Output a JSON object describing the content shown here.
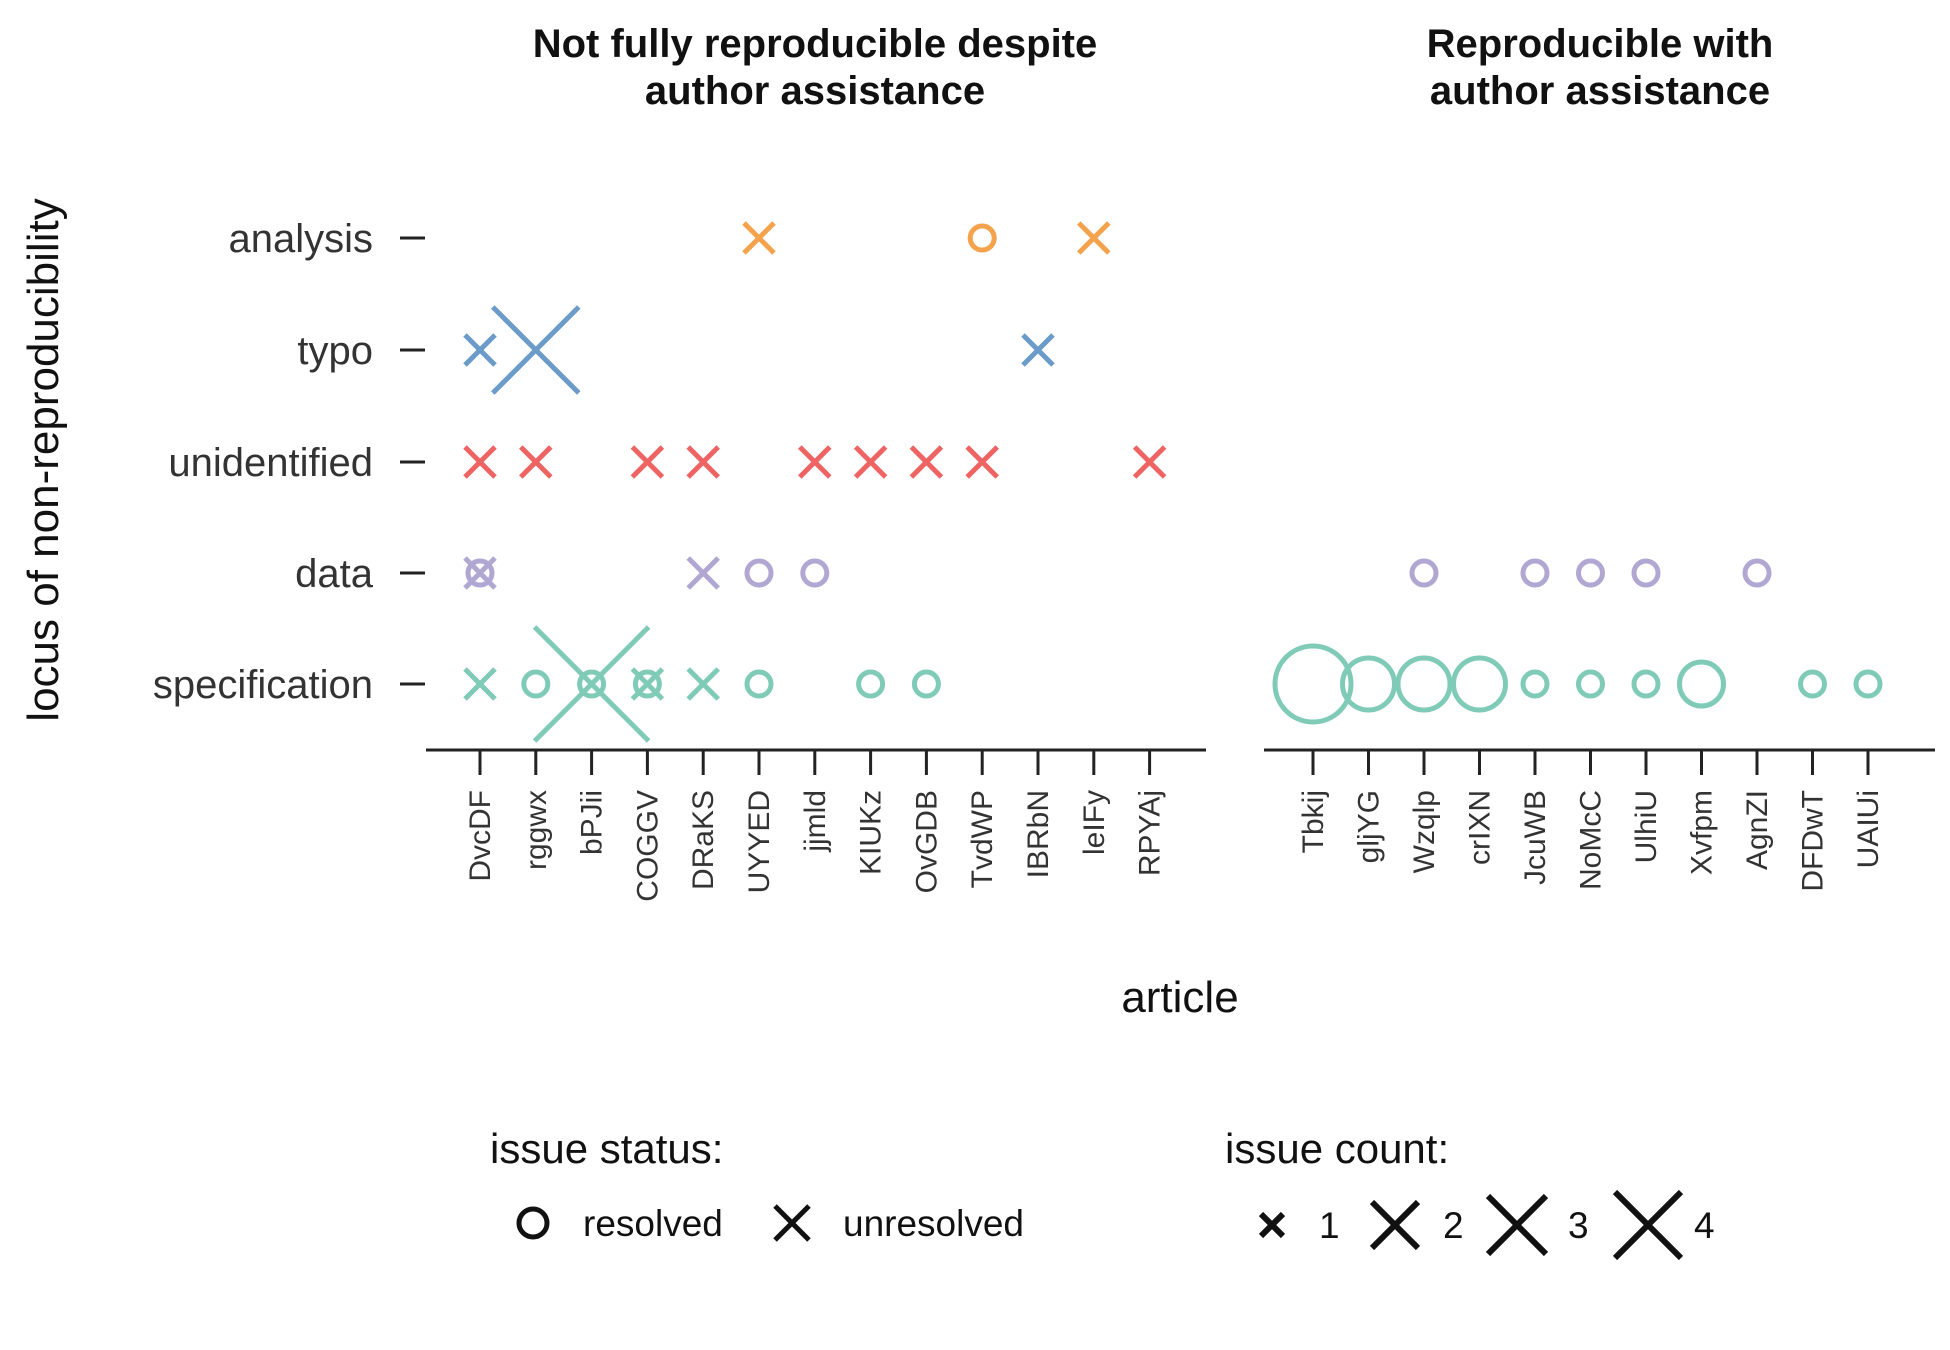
{
  "chart_data": {
    "type": "scatter",
    "ylabel": "locus of non-reproducibility",
    "xlabel": "article",
    "categories_y": [
      "analysis",
      "typo",
      "unidentified",
      "data",
      "specification"
    ],
    "colors": {
      "analysis": "#F5A24C",
      "typo": "#6B9BC8",
      "unidentified": "#EE6463",
      "data": "#B0A8D2",
      "specification": "#7FCBB8"
    },
    "panels": [
      {
        "title_lines": [
          "Not fully reproducible despite",
          "author assistance"
        ],
        "articles": [
          "DvcDF",
          "rggwx",
          "bPJii",
          "COGGV",
          "DRaKS",
          "UYYED",
          "jjmld",
          "KIUKz",
          "OvGDB",
          "TvdWP",
          "IBRbN",
          "leIFy",
          "RPYAj"
        ],
        "points": [
          {
            "article": "UYYED",
            "locus": "analysis",
            "status": "unresolved",
            "count": 1
          },
          {
            "article": "TvdWP",
            "locus": "analysis",
            "status": "resolved",
            "count": 1
          },
          {
            "article": "leIFy",
            "locus": "analysis",
            "status": "unresolved",
            "count": 1
          },
          {
            "article": "DvcDF",
            "locus": "typo",
            "status": "unresolved",
            "count": 1
          },
          {
            "article": "rggwx",
            "locus": "typo",
            "status": "unresolved",
            "count": 3
          },
          {
            "article": "IBRbN",
            "locus": "typo",
            "status": "unresolved",
            "count": 1
          },
          {
            "article": "DvcDF",
            "locus": "unidentified",
            "status": "unresolved",
            "count": 1
          },
          {
            "article": "rggwx",
            "locus": "unidentified",
            "status": "unresolved",
            "count": 1
          },
          {
            "article": "COGGV",
            "locus": "unidentified",
            "status": "unresolved",
            "count": 1
          },
          {
            "article": "DRaKS",
            "locus": "unidentified",
            "status": "unresolved",
            "count": 1
          },
          {
            "article": "jjmld",
            "locus": "unidentified",
            "status": "unresolved",
            "count": 1
          },
          {
            "article": "KIUKz",
            "locus": "unidentified",
            "status": "unresolved",
            "count": 1
          },
          {
            "article": "OvGDB",
            "locus": "unidentified",
            "status": "unresolved",
            "count": 1
          },
          {
            "article": "TvdWP",
            "locus": "unidentified",
            "status": "unresolved",
            "count": 1
          },
          {
            "article": "RPYAj",
            "locus": "unidentified",
            "status": "unresolved",
            "count": 1
          },
          {
            "article": "DvcDF",
            "locus": "data",
            "status": "resolved",
            "count": 1
          },
          {
            "article": "DvcDF",
            "locus": "data",
            "status": "unresolved",
            "count": 1
          },
          {
            "article": "DRaKS",
            "locus": "data",
            "status": "unresolved",
            "count": 1
          },
          {
            "article": "UYYED",
            "locus": "data",
            "status": "resolved",
            "count": 1
          },
          {
            "article": "jjmld",
            "locus": "data",
            "status": "resolved",
            "count": 1
          },
          {
            "article": "DvcDF",
            "locus": "specification",
            "status": "unresolved",
            "count": 1
          },
          {
            "article": "rggwx",
            "locus": "specification",
            "status": "resolved",
            "count": 1
          },
          {
            "article": "bPJii",
            "locus": "specification",
            "status": "resolved",
            "count": 1
          },
          {
            "article": "bPJii",
            "locus": "specification",
            "status": "unresolved",
            "count": 4
          },
          {
            "article": "COGGV",
            "locus": "specification",
            "status": "resolved",
            "count": 1
          },
          {
            "article": "COGGV",
            "locus": "specification",
            "status": "unresolved",
            "count": 1
          },
          {
            "article": "DRaKS",
            "locus": "specification",
            "status": "unresolved",
            "count": 1
          },
          {
            "article": "UYYED",
            "locus": "specification",
            "status": "resolved",
            "count": 1
          },
          {
            "article": "KIUKz",
            "locus": "specification",
            "status": "resolved",
            "count": 1
          },
          {
            "article": "OvGDB",
            "locus": "specification",
            "status": "resolved",
            "count": 1
          }
        ]
      },
      {
        "title_lines": [
          "Reproducible with",
          "author assistance"
        ],
        "articles": [
          "Tbkij",
          "gljYG",
          "Wzqlp",
          "crIXN",
          "JcuWB",
          "NoMcC",
          "UlhiU",
          "Xvfpm",
          "AgnZI",
          "DFDwT",
          "UAIUi"
        ],
        "points": [
          {
            "article": "Wzqlp",
            "locus": "data",
            "status": "resolved",
            "count": 1
          },
          {
            "article": "JcuWB",
            "locus": "data",
            "status": "resolved",
            "count": 1
          },
          {
            "article": "NoMcC",
            "locus": "data",
            "status": "resolved",
            "count": 1
          },
          {
            "article": "UlhiU",
            "locus": "data",
            "status": "resolved",
            "count": 1
          },
          {
            "article": "AgnZI",
            "locus": "data",
            "status": "resolved",
            "count": 1
          },
          {
            "article": "Tbkij",
            "locus": "specification",
            "status": "resolved",
            "count": 4
          },
          {
            "article": "gljYG",
            "locus": "specification",
            "status": "resolved",
            "count": 3
          },
          {
            "article": "Wzqlp",
            "locus": "specification",
            "status": "resolved",
            "count": 3
          },
          {
            "article": "crIXN",
            "locus": "specification",
            "status": "resolved",
            "count": 3
          },
          {
            "article": "JcuWB",
            "locus": "specification",
            "status": "resolved",
            "count": 1
          },
          {
            "article": "NoMcC",
            "locus": "specification",
            "status": "resolved",
            "count": 1
          },
          {
            "article": "UlhiU",
            "locus": "specification",
            "status": "resolved",
            "count": 1
          },
          {
            "article": "Xvfpm",
            "locus": "specification",
            "status": "resolved",
            "count": 2
          },
          {
            "article": "DFDwT",
            "locus": "specification",
            "status": "resolved",
            "count": 1
          },
          {
            "article": "UAIUi",
            "locus": "specification",
            "status": "resolved",
            "count": 1
          }
        ]
      }
    ],
    "legend": {
      "status_title": "issue status:",
      "status_items": [
        {
          "label": "resolved",
          "marker": "circle"
        },
        {
          "label": "unresolved",
          "marker": "cross"
        }
      ],
      "count_title": "issue count:",
      "count_items": [
        {
          "label": "1",
          "count": 1
        },
        {
          "label": "2",
          "count": 2
        },
        {
          "label": "3",
          "count": 3
        },
        {
          "label": "4",
          "count": 4
        }
      ],
      "placement": "bottom"
    }
  }
}
